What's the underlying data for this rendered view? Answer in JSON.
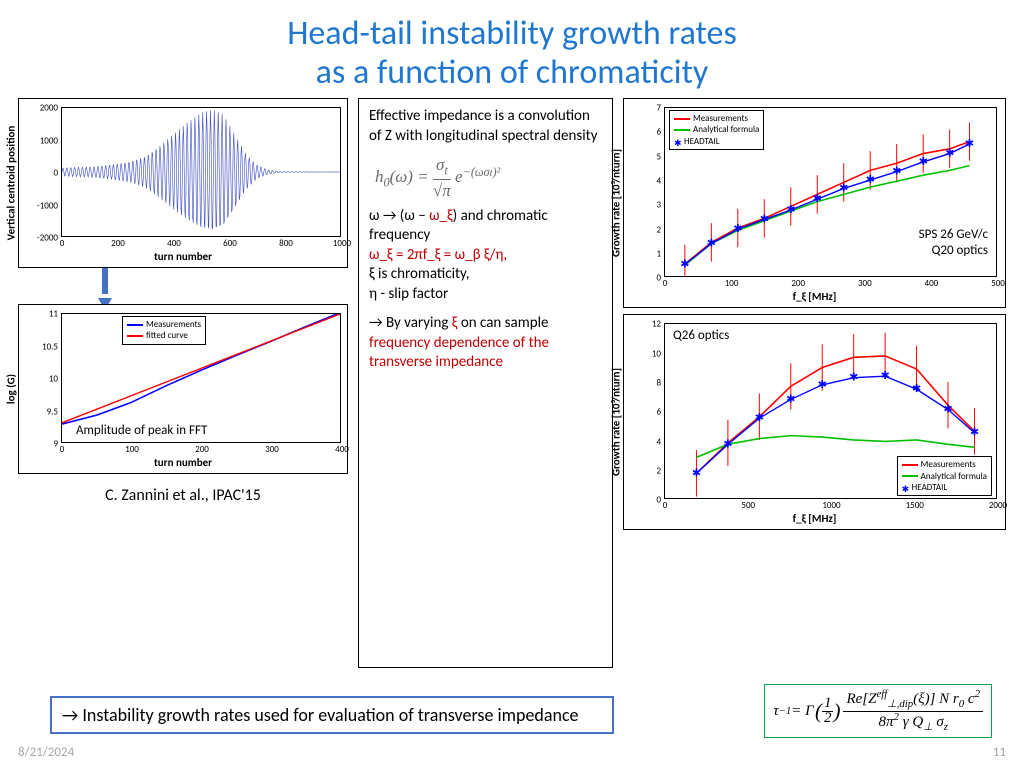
{
  "title_line1": "Head-tail instability growth rates",
  "title_line2": "as a function of chromaticity",
  "footer": {
    "date": "8/21/2024",
    "page": "11"
  },
  "citation": "C. Zannini et al., IPAC'15",
  "bottom_note": "→ Instability growth rates used for evaluation of transverse impedance",
  "midbox": {
    "p1": "Effective impedance is a convolution of Z with longitudinal spectral density",
    "formula_tex": "h₀(ω) = (σₜ / √π) · e^{-(ω σₜ)²}",
    "p2_a": "ω → (ω − ",
    "p2_b": "ω_ξ",
    "p2_c": ") and chromatic frequency",
    "p3_a": "ω_ξ",
    "p3_b": " = 2πf_ξ = ω_β ξ/η,",
    "p4": "ξ is chromaticity,",
    "p5": "η - slip factor",
    "p6_a": "→ By varying ",
    "p6_b": "ξ",
    "p6_c": " on can sample ",
    "p6_d": "frequency dependence of the transverse impedance"
  },
  "chart_tl": {
    "type": "line",
    "xlabel": "turn number",
    "ylabel": "Vertical centroid position",
    "xlim": [
      0,
      1000
    ],
    "xtick_step": 200,
    "ylim": [
      -2000,
      2000
    ],
    "yticks": [
      -2000,
      -1000,
      0,
      1000,
      2000
    ],
    "signal_color": "#3b4cc0",
    "envelope": [
      [
        0,
        120
      ],
      [
        50,
        150
      ],
      [
        100,
        160
      ],
      [
        150,
        200
      ],
      [
        200,
        260
      ],
      [
        250,
        340
      ],
      [
        300,
        500
      ],
      [
        350,
        820
      ],
      [
        400,
        1200
      ],
      [
        450,
        1550
      ],
      [
        500,
        1850
      ],
      [
        540,
        1950
      ],
      [
        580,
        1800
      ],
      [
        620,
        1200
      ],
      [
        660,
        600
      ],
      [
        700,
        220
      ],
      [
        740,
        70
      ],
      [
        780,
        20
      ],
      [
        820,
        10
      ],
      [
        900,
        5
      ],
      [
        1000,
        3
      ]
    ]
  },
  "chart_bl": {
    "type": "line",
    "xlabel": "turn number",
    "ylabel": "log (G)",
    "xlim": [
      0,
      400
    ],
    "xtick_step": 100,
    "ylim": [
      9,
      11
    ],
    "ytick_step": 0.5,
    "annotation": "Amplitude of peak in FFT",
    "legend": [
      {
        "label": "Measurements",
        "color": "#0000ff"
      },
      {
        "label": "fitted curve",
        "color": "#ff0000"
      }
    ],
    "series_meas": [
      [
        0,
        9.28
      ],
      [
        50,
        9.42
      ],
      [
        100,
        9.62
      ],
      [
        150,
        9.88
      ],
      [
        200,
        10.12
      ],
      [
        250,
        10.35
      ],
      [
        300,
        10.57
      ],
      [
        350,
        10.8
      ],
      [
        400,
        11.02
      ]
    ],
    "series_fit": [
      [
        0,
        9.3
      ],
      [
        400,
        11.0
      ]
    ]
  },
  "chart_tr": {
    "type": "line-errorbar",
    "xlabel": "f_ξ  [MHz]",
    "ylabel": "Growth rate [10³/nturn]",
    "xlim": [
      0,
      500
    ],
    "xtick_step": 100,
    "ylim": [
      0,
      7
    ],
    "ytick_step": 1,
    "annotation1": "SPS 26 GeV/c",
    "annotation2": "Q20 optics",
    "legend": [
      {
        "label": "Measurements",
        "color": "#ff0000",
        "style": "line"
      },
      {
        "label": "Analytical formula",
        "color": "#00c000",
        "style": "line"
      },
      {
        "label": "HEADTAIL",
        "color": "#0000ff",
        "style": "marker"
      }
    ],
    "meas": [
      [
        30,
        0.5
      ],
      [
        70,
        1.4
      ],
      [
        110,
        2.0
      ],
      [
        150,
        2.4
      ],
      [
        190,
        2.9
      ],
      [
        230,
        3.4
      ],
      [
        270,
        3.9
      ],
      [
        310,
        4.4
      ],
      [
        350,
        4.7
      ],
      [
        390,
        5.1
      ],
      [
        430,
        5.3
      ],
      [
        460,
        5.6
      ]
    ],
    "meas_err": 0.8,
    "analytic": [
      [
        30,
        0.45
      ],
      [
        70,
        1.35
      ],
      [
        110,
        1.9
      ],
      [
        150,
        2.3
      ],
      [
        190,
        2.7
      ],
      [
        230,
        3.1
      ],
      [
        270,
        3.4
      ],
      [
        310,
        3.7
      ],
      [
        350,
        3.95
      ],
      [
        390,
        4.2
      ],
      [
        430,
        4.4
      ],
      [
        460,
        4.6
      ]
    ],
    "headtail": [
      [
        30,
        0.48
      ],
      [
        70,
        1.35
      ],
      [
        110,
        1.95
      ],
      [
        150,
        2.35
      ],
      [
        190,
        2.75
      ],
      [
        230,
        3.2
      ],
      [
        270,
        3.65
      ],
      [
        310,
        4.0
      ],
      [
        350,
        4.35
      ],
      [
        390,
        4.75
      ],
      [
        430,
        5.1
      ],
      [
        460,
        5.5
      ]
    ]
  },
  "chart_br": {
    "type": "line-errorbar",
    "xlabel": "f_ξ  [MHz]",
    "ylabel": "Growth rate [10³/nturn]",
    "xlim": [
      0,
      2000
    ],
    "xtick_step": 500,
    "ylim": [
      0,
      12
    ],
    "ytick_step": 2,
    "annotation": "Q26 optics",
    "legend": [
      {
        "label": "Measurements",
        "color": "#ff0000",
        "style": "line"
      },
      {
        "label": "Analytical formula",
        "color": "#00c000",
        "style": "line"
      },
      {
        "label": "HEADTAIL",
        "color": "#0000ff",
        "style": "marker"
      }
    ],
    "meas": [
      [
        190,
        1.7
      ],
      [
        380,
        3.8
      ],
      [
        570,
        5.6
      ],
      [
        760,
        7.7
      ],
      [
        950,
        9.0
      ],
      [
        1140,
        9.7
      ],
      [
        1330,
        9.8
      ],
      [
        1520,
        8.9
      ],
      [
        1710,
        6.4
      ],
      [
        1870,
        4.6
      ]
    ],
    "meas_err": 1.6,
    "analytic": [
      [
        190,
        2.8
      ],
      [
        380,
        3.7
      ],
      [
        570,
        4.1
      ],
      [
        760,
        4.3
      ],
      [
        950,
        4.2
      ],
      [
        1140,
        4.0
      ],
      [
        1330,
        3.9
      ],
      [
        1520,
        4.0
      ],
      [
        1710,
        3.7
      ],
      [
        1870,
        3.5
      ]
    ],
    "headtail": [
      [
        190,
        1.7
      ],
      [
        380,
        3.7
      ],
      [
        570,
        5.5
      ],
      [
        760,
        6.8
      ],
      [
        950,
        7.8
      ],
      [
        1140,
        8.3
      ],
      [
        1330,
        8.4
      ],
      [
        1520,
        7.5
      ],
      [
        1710,
        6.1
      ],
      [
        1870,
        4.5
      ]
    ]
  },
  "tau_formula": "τ⁻¹ = Γ(½) · Re[Z_{⊥,dip}^{eff}(ξ)] N r₀ c² / (8 π² γ Q_⊥ σ_z)",
  "colors": {
    "title": "#1f77d0",
    "accent_border": "#4472c4",
    "red": "#c00000",
    "green_border": "#00a651",
    "grey": "#a6a6a6"
  }
}
